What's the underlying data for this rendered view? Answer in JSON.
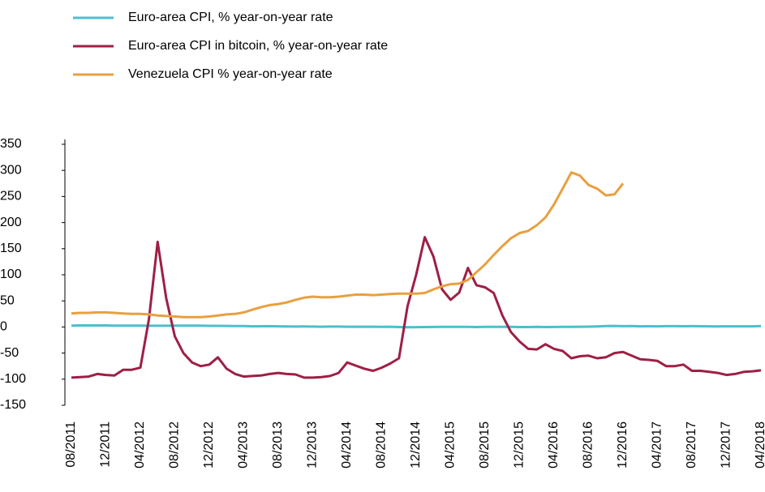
{
  "chart_data": {
    "type": "line",
    "categories": [
      "08/2011",
      null,
      null,
      null,
      "12/2011",
      null,
      null,
      null,
      "04/2012",
      null,
      null,
      null,
      "08/2012",
      null,
      null,
      null,
      "12/2012",
      null,
      null,
      null,
      "04/2013",
      null,
      null,
      null,
      "08/2013",
      null,
      null,
      null,
      "12/2013",
      null,
      null,
      null,
      "04/2014",
      null,
      null,
      null,
      "08/2014",
      null,
      null,
      null,
      "12/2014",
      null,
      null,
      null,
      "04/2015",
      null,
      null,
      null,
      "08/2015",
      null,
      null,
      null,
      "12/2015",
      null,
      null,
      null,
      "04/2016",
      null,
      null,
      null,
      "08/2016",
      null,
      null,
      null,
      "12/2016",
      null,
      null,
      null,
      "04/2017",
      null,
      null,
      null,
      "08/2017",
      null,
      null,
      null,
      "12/2017",
      null,
      null,
      null,
      "04/2018"
    ],
    "series": [
      {
        "name": "Euro-area CPI, % year-on-year rate",
        "color": "#4bbfcf",
        "values": [
          2.5,
          3.0,
          3.0,
          3.0,
          3.0,
          2.7,
          2.7,
          2.7,
          2.6,
          2.4,
          2.4,
          2.4,
          2.6,
          2.6,
          2.5,
          2.5,
          2.2,
          2.2,
          2.0,
          1.8,
          1.7,
          1.2,
          1.4,
          1.6,
          1.3,
          1.1,
          0.8,
          0.9,
          0.7,
          0.5,
          0.7,
          0.8,
          0.5,
          0.5,
          0.4,
          0.4,
          0.3,
          0.4,
          -0.2,
          -0.6,
          -0.3,
          -0.1,
          0.0,
          0.3,
          0.2,
          0.2,
          0.1,
          -0.1,
          0.1,
          0.2,
          0.3,
          0.2,
          -0.2,
          -0.1,
          0.3,
          -0.1,
          0.0,
          0.1,
          0.2,
          0.4,
          0.6,
          1.1,
          1.8,
          2.0,
          1.5,
          1.9,
          1.3,
          1.4,
          1.3,
          1.5,
          1.5,
          1.4,
          1.5,
          1.4,
          1.3,
          1.1,
          1.3,
          1.3,
          1.3,
          1.2,
          1.9
        ]
      },
      {
        "name": "Euro-area CPI in bitcoin, % year-on-year rate",
        "color": "#9e1f45",
        "values": [
          -97,
          -96,
          -95,
          -90,
          -92,
          -93,
          -82,
          -82,
          -78,
          15,
          163,
          55,
          -18,
          -50,
          -68,
          -75,
          -72,
          -58,
          -80,
          -90,
          -95,
          -94,
          -93,
          -90,
          -88,
          -90,
          -91,
          -97,
          -97,
          -96,
          -94,
          -88,
          -68,
          -74,
          -80,
          -84,
          -78,
          -70,
          -60,
          40,
          100,
          172,
          135,
          72,
          52,
          66,
          113,
          80,
          76,
          65,
          22,
          -10,
          -28,
          -42,
          -43,
          -33,
          -42,
          -46,
          -60,
          -56,
          -55,
          -60,
          -58,
          -50,
          -48,
          -55,
          -62,
          -63,
          -65,
          -75,
          -75,
          -72,
          -84,
          -84,
          -86,
          -88,
          -92,
          -90,
          -86,
          -85,
          -83
        ]
      },
      {
        "name": "Venezuela CPI % year-on-year rate",
        "color": "#e8a040",
        "values": [
          26,
          27,
          27,
          28,
          28,
          27,
          26,
          25,
          25,
          24,
          22,
          21,
          20,
          19,
          19,
          19,
          20,
          22,
          24,
          25,
          28,
          33,
          38,
          42,
          44,
          47,
          52,
          56,
          58,
          57,
          57,
          58,
          60,
          62,
          62,
          61,
          62,
          63,
          64,
          64,
          64,
          65,
          72,
          78,
          82,
          83,
          90,
          105,
          120,
          138,
          155,
          170,
          180,
          184,
          195,
          210,
          235,
          265,
          296,
          290,
          272,
          265,
          252,
          254,
          275,
          null,
          null,
          null,
          null,
          null,
          null,
          null,
          null,
          null,
          null,
          null,
          null,
          null,
          null,
          null,
          null
        ]
      }
    ],
    "ylim": [
      -150,
      350
    ],
    "yticks": [
      -150,
      -100,
      -50,
      0,
      50,
      100,
      150,
      200,
      250,
      300,
      350
    ]
  }
}
